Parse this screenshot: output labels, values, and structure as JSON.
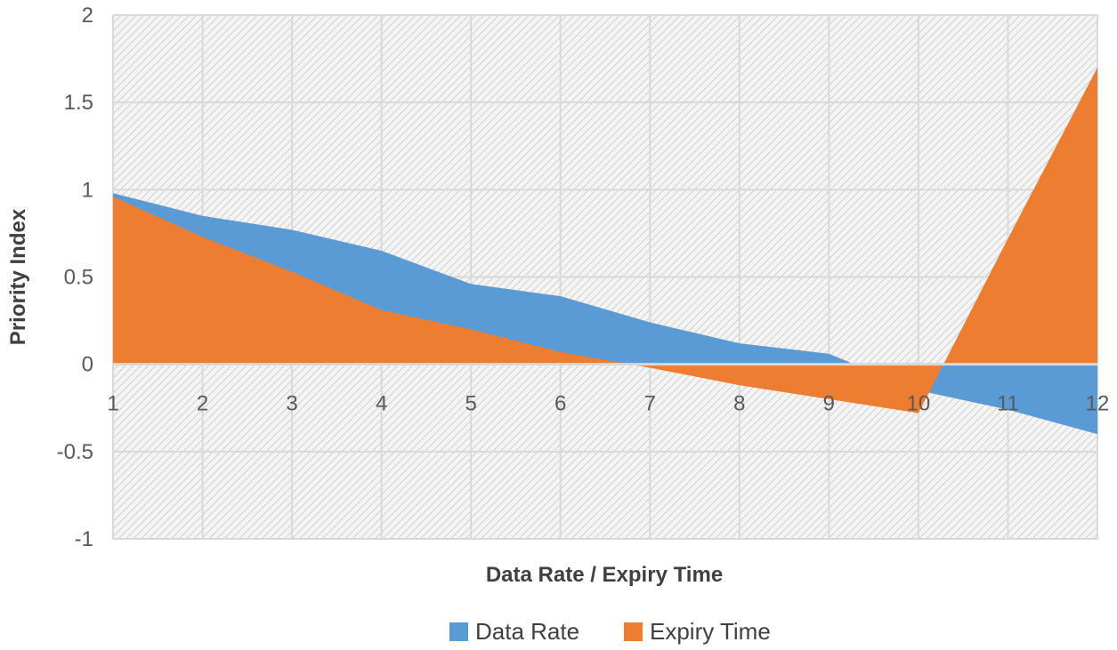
{
  "chart_data": {
    "type": "area",
    "title": "",
    "xlabel": "Data Rate / Expiry Time",
    "ylabel": "Priority Index",
    "x": [
      1,
      2,
      3,
      4,
      5,
      6,
      7,
      8,
      9,
      10,
      11,
      12
    ],
    "x_tick_labels": [
      "1",
      "2",
      "3",
      "4",
      "5",
      "6",
      "7",
      "8",
      "9",
      "10",
      "11",
      "12"
    ],
    "y_tick_labels": [
      "-1",
      "-0.5",
      "0",
      "0.5",
      "1",
      "1.5",
      "2"
    ],
    "y_ticks": [
      -1,
      -0.5,
      0,
      0.5,
      1,
      1.5,
      2
    ],
    "ylim": [
      -1,
      2
    ],
    "grid": true,
    "legend_position": "bottom",
    "series": [
      {
        "name": "Data Rate",
        "color": "#5B9BD5",
        "values": [
          0.98,
          0.85,
          0.77,
          0.65,
          0.46,
          0.39,
          0.24,
          0.12,
          0.06,
          -0.15,
          -0.26,
          -0.4
        ]
      },
      {
        "name": "Expiry Time",
        "color": "#ED7D31",
        "values": [
          0.96,
          0.73,
          0.53,
          0.31,
          0.2,
          0.07,
          -0.02,
          -0.12,
          -0.2,
          -0.28,
          0.72,
          1.7
        ]
      }
    ]
  }
}
